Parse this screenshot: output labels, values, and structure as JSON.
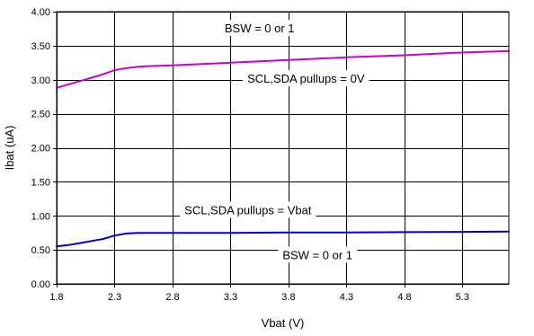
{
  "chart_data": {
    "type": "line",
    "title": "",
    "xlabel": "Vbat (V)",
    "ylabel": "Ibat (uA)",
    "xlim": [
      1.8,
      5.7
    ],
    "ylim": [
      0.0,
      4.0
    ],
    "xticks": [
      1.8,
      2.3,
      2.8,
      3.3,
      3.8,
      4.3,
      4.8,
      5.3
    ],
    "xtick_labels": [
      "1.8",
      "2.3",
      "2.8",
      "3.3",
      "3.8",
      "4.3",
      "4.8",
      "5.3"
    ],
    "yticks": [
      0.0,
      0.5,
      1.0,
      1.5,
      2.0,
      2.5,
      3.0,
      3.5,
      4.0
    ],
    "ytick_labels": [
      "0.00",
      "0.50",
      "1.00",
      "1.50",
      "2.00",
      "2.50",
      "3.00",
      "3.50",
      "4.00"
    ],
    "grid": true,
    "series": [
      {
        "color": "#cc00cc",
        "x": [
          1.8,
          1.9,
          2.0,
          2.1,
          2.2,
          2.3,
          2.4,
          2.5,
          2.6,
          2.8,
          3.3,
          3.8,
          4.3,
          4.8,
          5.3,
          5.7
        ],
        "y": [
          2.88,
          2.93,
          2.98,
          3.03,
          3.08,
          3.14,
          3.17,
          3.19,
          3.2,
          3.21,
          3.25,
          3.29,
          3.33,
          3.36,
          3.4,
          3.42
        ]
      },
      {
        "color": "#0000cc",
        "x": [
          1.8,
          1.9,
          2.0,
          2.1,
          2.2,
          2.3,
          2.4,
          2.5,
          2.6,
          2.8,
          3.3,
          3.8,
          4.3,
          4.8,
          5.3,
          5.7
        ],
        "y": [
          0.55,
          0.57,
          0.6,
          0.63,
          0.66,
          0.71,
          0.74,
          0.75,
          0.75,
          0.75,
          0.75,
          0.755,
          0.755,
          0.76,
          0.765,
          0.77
        ]
      }
    ],
    "annotations": [
      {
        "text": "BSW = 0 or 1",
        "x": 3.55,
        "y": 3.76
      },
      {
        "text": "SCL,SDA pullups = 0V",
        "x": 3.95,
        "y": 3.02
      },
      {
        "text": "SCL,SDA pullups = Vbat",
        "x": 3.45,
        "y": 1.09
      },
      {
        "text": "BSW = 0 or 1",
        "x": 4.05,
        "y": 0.43
      }
    ]
  }
}
